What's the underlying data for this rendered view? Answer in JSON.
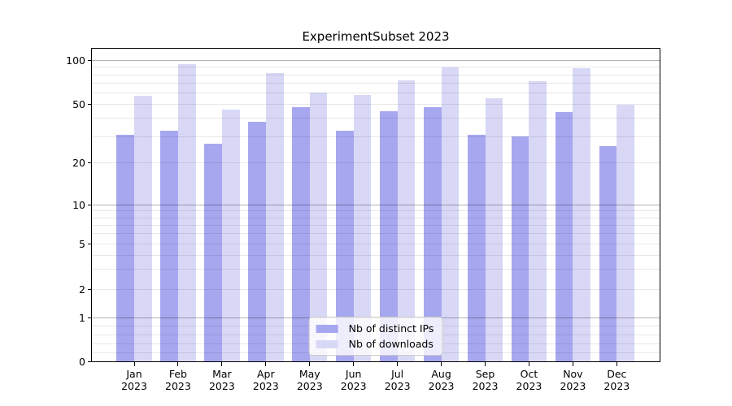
{
  "chart_data": {
    "type": "bar",
    "title": "ExperimentSubset 2023",
    "categories": [
      "Jan",
      "Feb",
      "Mar",
      "Apr",
      "May",
      "Jun",
      "Jul",
      "Aug",
      "Sep",
      "Oct",
      "Nov",
      "Dec"
    ],
    "category_year": "2023",
    "series": [
      {
        "name": "Nb of distinct IPs",
        "color": "#a7a7f0",
        "values": [
          31,
          33,
          27,
          38,
          48,
          33,
          45,
          48,
          31,
          30,
          44,
          26
        ]
      },
      {
        "name": "Nb of downloads",
        "color": "#d8d8f6",
        "values": [
          57,
          95,
          46,
          82,
          60,
          58,
          73,
          90,
          55,
          72,
          89,
          50
        ]
      }
    ],
    "xlabel": "",
    "ylabel": "",
    "yscale": "symlog",
    "ylim": [
      0,
      120
    ],
    "ytick_labels": [
      "0",
      "1",
      "2",
      "5",
      "10",
      "20",
      "50",
      "100"
    ],
    "ytick_values": [
      0,
      1,
      2,
      5,
      10,
      20,
      50,
      100
    ],
    "minor_grid_values": [
      0.2,
      0.4,
      0.6,
      0.8,
      2,
      3,
      4,
      5,
      6,
      7,
      8,
      9,
      20,
      30,
      40,
      50,
      60,
      70,
      80,
      90
    ],
    "major_grid_values": [
      1,
      10,
      100
    ],
    "grid": true,
    "legend_position": "lower center",
    "colors": {
      "background": "#ffffff",
      "spine": "#000000",
      "major_grid": "rgba(0,0,0,0.30)",
      "minor_grid": "rgba(0,0,0,0.09)"
    }
  }
}
